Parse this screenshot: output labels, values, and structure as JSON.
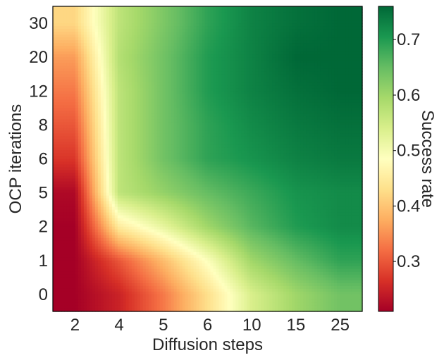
{
  "chart_data": {
    "type": "heatmap",
    "title": "",
    "xlabel": "Diffusion steps",
    "ylabel": "OCP iterations",
    "x_categories": [
      "2",
      "4",
      "5",
      "6",
      "10",
      "15",
      "25"
    ],
    "y_categories": [
      "0",
      "1",
      "2",
      "5",
      "6",
      "8",
      "12",
      "20",
      "30"
    ],
    "interpolation": "smooth",
    "values": [
      [
        0.21,
        0.25,
        0.33,
        0.43,
        0.54,
        0.6,
        0.64
      ],
      [
        0.21,
        0.3,
        0.39,
        0.49,
        0.6,
        0.65,
        0.69
      ],
      [
        0.21,
        0.45,
        0.52,
        0.6,
        0.66,
        0.7,
        0.72
      ],
      [
        0.22,
        0.57,
        0.61,
        0.65,
        0.68,
        0.71,
        0.72
      ],
      [
        0.27,
        0.57,
        0.64,
        0.69,
        0.71,
        0.73,
        0.74
      ],
      [
        0.3,
        0.57,
        0.64,
        0.69,
        0.72,
        0.74,
        0.75
      ],
      [
        0.33,
        0.57,
        0.64,
        0.7,
        0.73,
        0.75,
        0.76
      ],
      [
        0.36,
        0.58,
        0.64,
        0.7,
        0.73,
        0.76,
        0.76
      ],
      [
        0.42,
        0.57,
        0.63,
        0.69,
        0.73,
        0.75,
        0.76
      ]
    ],
    "colorbar": {
      "label": "Success rate",
      "colormap": "RdYlGn",
      "vmin": 0.21,
      "vmax": 0.76,
      "ticks": [
        "0.3",
        "0.4",
        "0.5",
        "0.6",
        "0.7"
      ]
    }
  }
}
